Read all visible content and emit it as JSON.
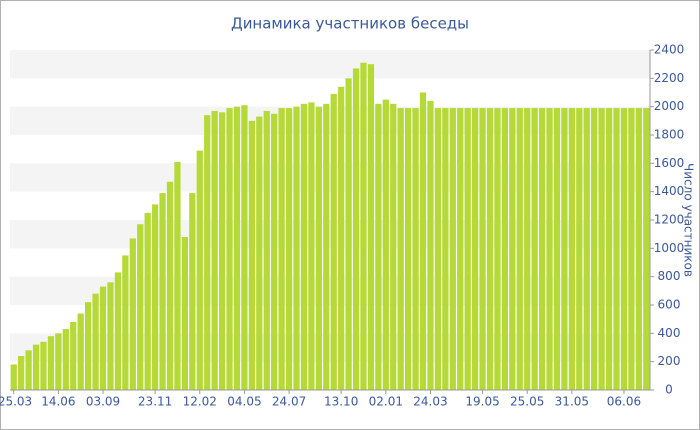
{
  "chart_data": {
    "type": "bar",
    "title": "Динамика участников беседы",
    "y_axis_label": "Число участников",
    "categories": [
      "25.03",
      null,
      null,
      null,
      null,
      null,
      "14.06",
      null,
      null,
      null,
      null,
      null,
      "03.09",
      null,
      null,
      null,
      null,
      null,
      null,
      "23.11",
      null,
      null,
      null,
      null,
      null,
      "12.02",
      null,
      null,
      null,
      null,
      null,
      "04.05",
      null,
      null,
      null,
      null,
      null,
      "24.07",
      null,
      null,
      null,
      null,
      null,
      null,
      "13.10",
      null,
      null,
      null,
      null,
      null,
      "02.01",
      null,
      null,
      null,
      null,
      null,
      "24.03",
      null,
      null,
      null,
      null,
      null,
      null,
      "19.05",
      null,
      null,
      null,
      null,
      null,
      "25.05",
      null,
      null,
      null,
      null,
      null,
      "31.05",
      null,
      null,
      null,
      null,
      null,
      null,
      "06.06",
      null,
      null,
      null
    ],
    "values": [
      180,
      240,
      280,
      320,
      340,
      380,
      400,
      430,
      480,
      540,
      620,
      680,
      730,
      760,
      830,
      950,
      1070,
      1170,
      1250,
      1310,
      1390,
      1470,
      1610,
      1080,
      1390,
      1690,
      1940,
      1970,
      1960,
      1990,
      2000,
      2010,
      1900,
      1930,
      1970,
      1950,
      1990,
      1990,
      2000,
      2020,
      2030,
      2000,
      2020,
      2090,
      2140,
      2200,
      2270,
      2310,
      2300,
      2020,
      2050,
      2020,
      1990,
      1990,
      1990,
      2100,
      2040,
      1990,
      1990,
      1990,
      1990,
      1990,
      1990,
      1990,
      1990,
      1990,
      1990,
      1990,
      1990,
      1990,
      1990,
      1990,
      1990,
      1990,
      1990,
      1990,
      1990,
      1990,
      1990,
      1990,
      1990,
      1990,
      1990,
      1990,
      1990,
      1990
    ],
    "color": "#b5d936",
    "ylim": [
      0,
      2400
    ],
    "yticks": [
      0,
      200,
      400,
      600,
      800,
      1000,
      1200,
      1400,
      1600,
      1800,
      2000,
      2200,
      2400
    ],
    "grid": true
  }
}
